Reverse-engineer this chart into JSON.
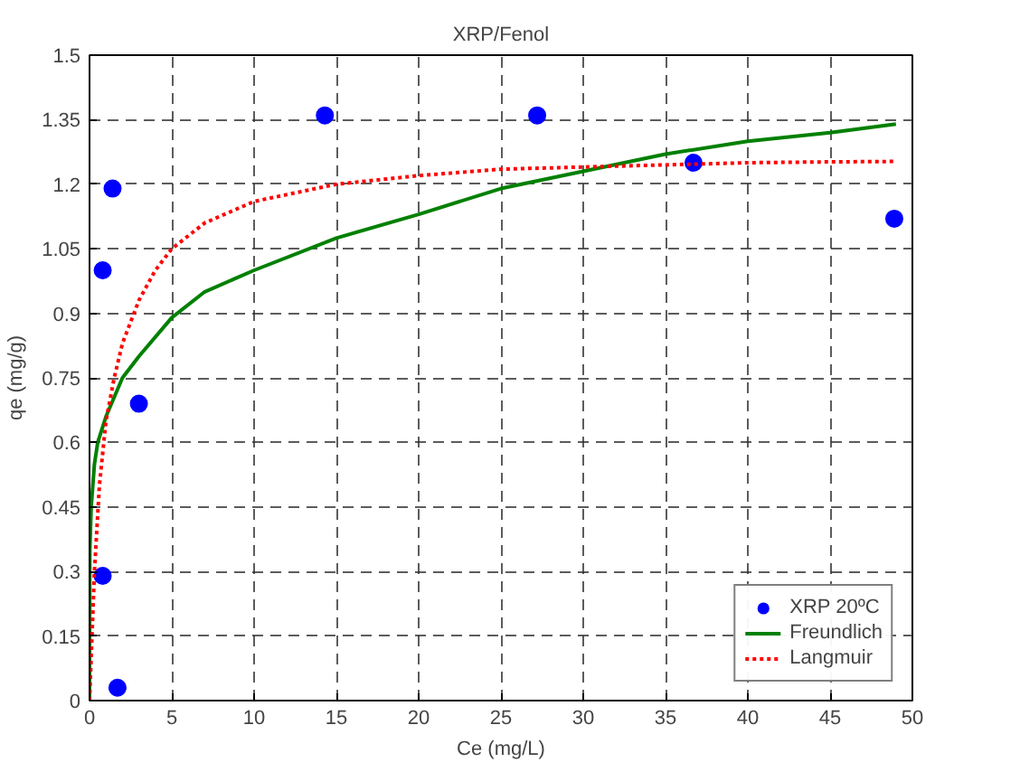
{
  "chart_data": {
    "type": "scatter",
    "title": "XRP/Fenol",
    "xlabel": "Ce (mg/L)",
    "ylabel": "qe (mg/g)",
    "xlim": [
      0,
      50
    ],
    "ylim": [
      0,
      1.5
    ],
    "xticks": [
      0,
      5,
      10,
      15,
      20,
      25,
      30,
      35,
      40,
      45,
      50
    ],
    "yticks": [
      0,
      0.15,
      0.3,
      0.45,
      0.6,
      0.75,
      0.9,
      1.05,
      1.2,
      1.35,
      1.5
    ],
    "grid": true,
    "legend": "bottom right",
    "series": [
      {
        "name": "XRP 20ºC",
        "marker": "circle",
        "color": "#0000ff",
        "x": [
          0.8,
          1.4,
          0.8,
          1.7,
          3.0,
          14.3,
          27.2,
          36.7,
          48.9
        ],
        "values": [
          1.0,
          1.19,
          0.29,
          0.03,
          0.69,
          1.36,
          1.36,
          1.25,
          1.12
        ]
      },
      {
        "name": "Freundlich",
        "type": "line",
        "line_style": "solid",
        "color": "#008000",
        "x": [
          0,
          0.02,
          0.1,
          0.3,
          0.5,
          1,
          2,
          3,
          5,
          7,
          10,
          15,
          20,
          25,
          30,
          35,
          40,
          45,
          49
        ],
        "values": [
          0,
          0.35,
          0.45,
          0.55,
          0.6,
          0.66,
          0.75,
          0.8,
          0.89,
          0.95,
          1.0,
          1.075,
          1.13,
          1.19,
          1.23,
          1.27,
          1.3,
          1.32,
          1.34
        ]
      },
      {
        "name": "Langmuir",
        "type": "line",
        "line_style": "dotted",
        "color": "#ff0000",
        "x": [
          0,
          0.3,
          0.6,
          1,
          1.5,
          2,
          3,
          4,
          5,
          7,
          10,
          15,
          20,
          25,
          30,
          35,
          40,
          45,
          49
        ],
        "values": [
          0,
          0.3,
          0.5,
          0.65,
          0.75,
          0.83,
          0.93,
          1.0,
          1.05,
          1.11,
          1.16,
          1.2,
          1.22,
          1.235,
          1.24,
          1.245,
          1.25,
          1.252,
          1.253
        ]
      }
    ]
  }
}
